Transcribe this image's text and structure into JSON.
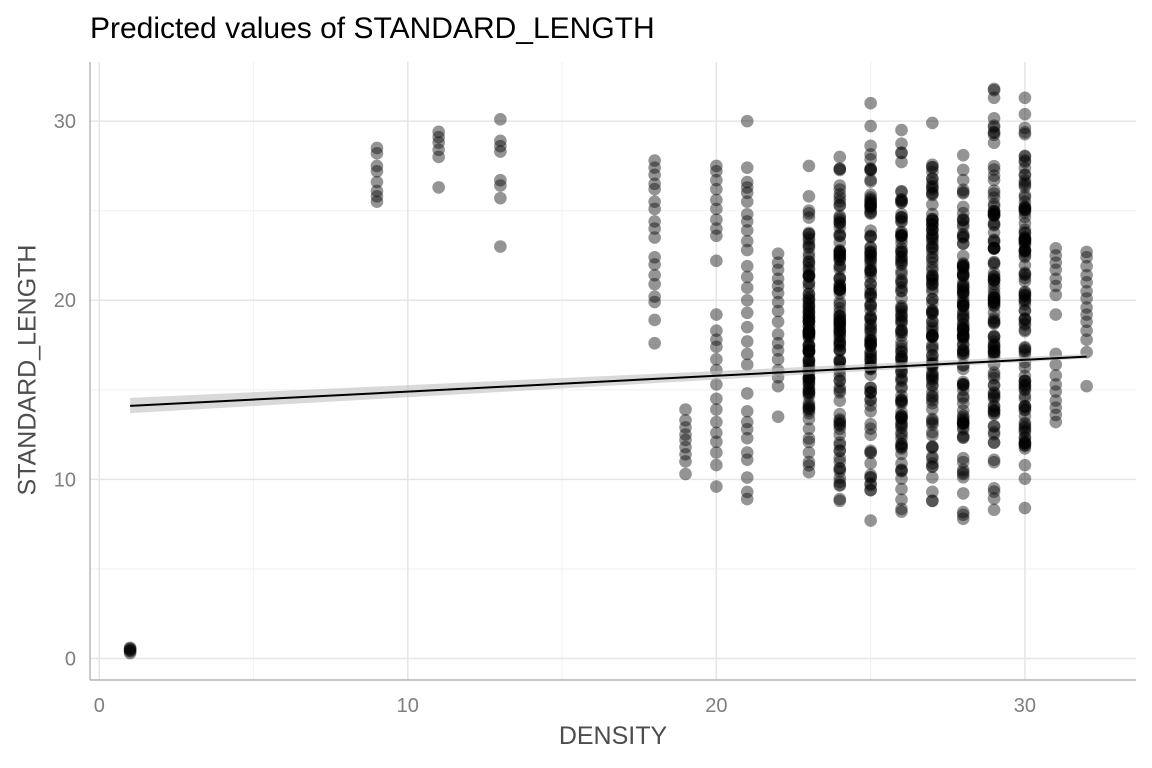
{
  "chart_data": {
    "type": "scatter",
    "title": "Predicted values of STANDARD_LENGTH",
    "xlabel": "DENSITY",
    "ylabel": "STANDARD_LENGTH",
    "xlim": [
      -0.3,
      33.6
    ],
    "ylim": [
      -1.2,
      33.3
    ],
    "xticks": [
      0,
      10,
      20,
      30
    ],
    "yticks": [
      0,
      10,
      20,
      30
    ],
    "grid": true,
    "colors": {
      "points": "#000000",
      "ribbon": "#bfbfbf",
      "line": "#000000",
      "grid_major": "#e6e6e6",
      "grid_minor": "#f2f2f2",
      "axis": "#b3b3b3"
    },
    "point_alpha": 0.42,
    "fit_line": {
      "x": [
        1,
        32
      ],
      "y": [
        14.1,
        16.85
      ],
      "ribbon_lower": [
        13.7,
        16.75
      ],
      "ribbon_upper": [
        14.55,
        17.0
      ]
    },
    "point_columns": [
      {
        "x": 1,
        "y": [
          0.3,
          0.4,
          0.5,
          0.6,
          0.45,
          0.55
        ]
      },
      {
        "x": 9,
        "y": [
          25.5,
          25.8,
          26.1,
          26.6,
          27.2,
          27.5,
          28.2,
          28.5
        ]
      },
      {
        "x": 11,
        "y": [
          26.3,
          28.0,
          28.4,
          28.8,
          29.1,
          29.4
        ]
      },
      {
        "x": 13,
        "y": [
          23.0,
          25.7,
          26.4,
          26.7,
          28.3,
          28.6,
          28.9,
          30.1
        ]
      },
      {
        "x": 18,
        "y": [
          17.6,
          18.9,
          19.9,
          20.2,
          20.9,
          21.4,
          22.0,
          22.4,
          23.5,
          24.0,
          24.4,
          25.1,
          25.5,
          26.2,
          26.5,
          27.0,
          27.4,
          27.8
        ]
      },
      {
        "x": 19,
        "y": [
          10.3,
          11.0,
          11.4,
          11.8,
          12.2,
          12.5,
          12.9,
          13.3,
          13.9
        ]
      },
      {
        "x": 20,
        "y": [
          9.6,
          10.8,
          11.5,
          12.1,
          12.6,
          13.2,
          13.9,
          14.5,
          15.3,
          16.1,
          16.7,
          17.4,
          17.8,
          18.3,
          19.2,
          22.2,
          23.6,
          24.0,
          24.5,
          25.1,
          25.6,
          26.2,
          26.7,
          27.2,
          27.5
        ]
      },
      {
        "x": 21,
        "y": [
          8.9,
          9.3,
          10.1,
          11.1,
          11.5,
          12.3,
          12.8,
          13.2,
          13.8,
          14.8,
          16.4,
          17.0,
          17.7,
          18.5,
          19.3,
          20.0,
          20.7,
          21.3,
          21.9,
          22.8,
          23.3,
          23.9,
          24.4,
          24.8,
          25.5,
          26.0,
          26.3,
          26.6,
          27.4,
          30.0
        ]
      },
      {
        "x": 22,
        "y": [
          13.5,
          15.2,
          15.7,
          16.1,
          16.7,
          17.2,
          17.6,
          18.1,
          18.8,
          19.4,
          19.9,
          20.4,
          20.8,
          21.2,
          21.7,
          22.1,
          22.6
        ]
      },
      {
        "range": [
          [
            23,
            10.4,
            25.0
          ],
          [
            24,
            8.8,
            28.0
          ],
          [
            25,
            7.7,
            31.0
          ],
          [
            26,
            8.2,
            29.5
          ],
          [
            27,
            8.8,
            29.9
          ],
          [
            28,
            7.8,
            28.1
          ],
          [
            29,
            8.3,
            31.8
          ],
          [
            30,
            8.4,
            31.3
          ]
        ],
        "count": 95
      },
      {
        "x": 23,
        "y": [
          27.5,
          25.8
        ]
      },
      {
        "x": 31,
        "y": [
          13.2,
          13.6,
          14.0,
          14.4,
          14.9,
          15.3,
          15.8,
          16.4,
          17.0,
          19.2,
          20.3,
          20.8,
          21.2,
          21.7,
          22.1,
          22.5,
          22.9
        ]
      },
      {
        "x": 32,
        "y": [
          15.2,
          17.1,
          17.8,
          18.3,
          18.8,
          19.2,
          19.6,
          20.1,
          20.5,
          21.0,
          21.4,
          21.9,
          22.4,
          22.7
        ]
      }
    ]
  }
}
